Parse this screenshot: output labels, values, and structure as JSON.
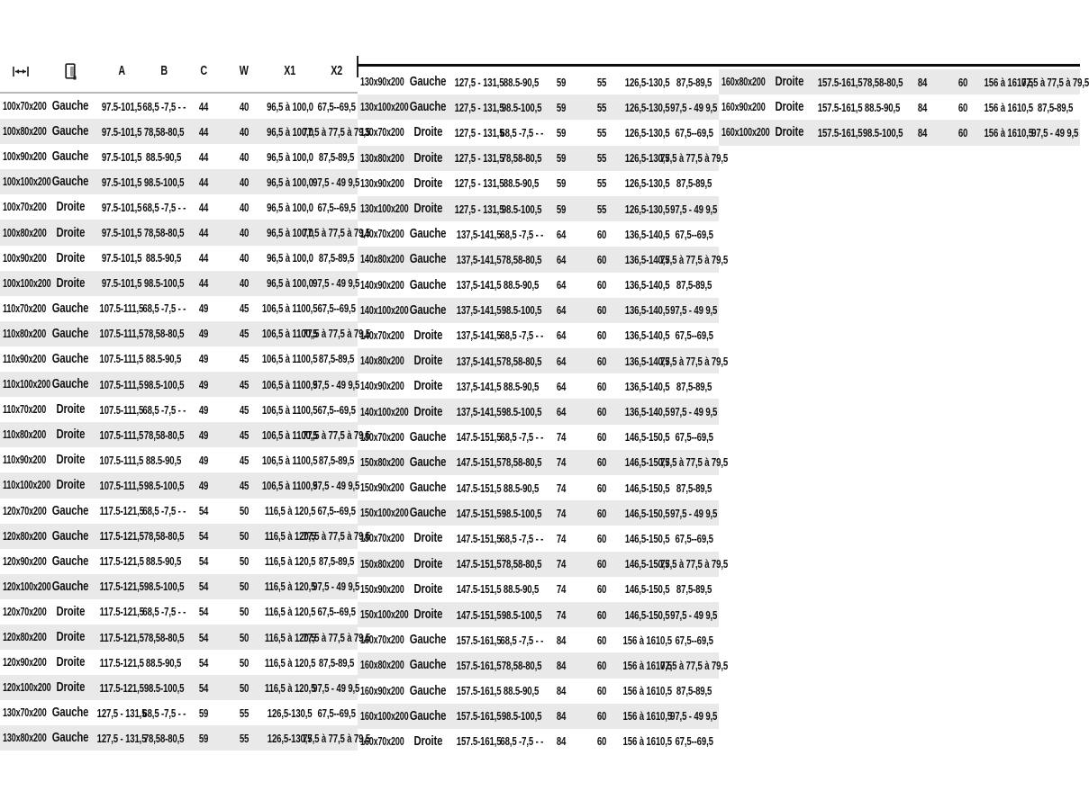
{
  "header": {
    "columns": [
      "A",
      "B",
      "C",
      "W",
      "X1",
      "X2"
    ],
    "icons": {
      "dimension": "width-arrow-icon",
      "side": "door-icon"
    }
  },
  "side_labels": {
    "left": "Gauche",
    "right": "Droite"
  },
  "tables": [
    {
      "rows": [
        [
          "100x70x200",
          "Gauche",
          "97.5-101,5",
          "68,5 -7,5 - -",
          "44",
          "40",
          "96,5 à 100,0",
          "67,5--69,5"
        ],
        [
          "100x80x200",
          "Gauche",
          "97.5-101,5",
          "78,58-80,5",
          "44",
          "40",
          "96,5 à 100,0",
          "77,5 à 77,5 à 79,5"
        ],
        [
          "100x90x200",
          "Gauche",
          "97.5-101,5",
          "88.5-90,5",
          "44",
          "40",
          "96,5 à 100,0",
          "87,5-89,5"
        ],
        [
          "100x100x200",
          "Gauche",
          "97.5-101,5",
          "98.5-100,5",
          "44",
          "40",
          "96,5 à 100,0",
          "97,5 - 49 9,5"
        ],
        [
          "100x70x200",
          "Droite",
          "97.5-101,5",
          "68,5 -7,5 - -",
          "44",
          "40",
          "96,5 à 100,0",
          "67,5--69,5"
        ],
        [
          "100x80x200",
          "Droite",
          "97.5-101,5",
          "78,58-80,5",
          "44",
          "40",
          "96,5 à 100,0",
          "77,5 à 77,5 à 79,5"
        ],
        [
          "100x90x200",
          "Droite",
          "97.5-101,5",
          "88.5-90,5",
          "44",
          "40",
          "96,5 à 100,0",
          "87,5-89,5"
        ],
        [
          "100x100x200",
          "Droite",
          "97.5-101,5",
          "98.5-100,5",
          "44",
          "40",
          "96,5 à 100,0",
          "97,5 - 49 9,5"
        ],
        [
          "110x70x200",
          "Gauche",
          "107.5-111,5",
          "68,5 -7,5 - -",
          "49",
          "45",
          "106,5 à 1100,5",
          "67,5--69,5"
        ],
        [
          "110x80x200",
          "Gauche",
          "107.5-111,5",
          "78,58-80,5",
          "49",
          "45",
          "106,5 à 1100,5",
          "77,5 à 77,5 à 79,5"
        ],
        [
          "110x90x200",
          "Gauche",
          "107.5-111,5",
          "88.5-90,5",
          "49",
          "45",
          "106,5 à 1100,5",
          "87,5-89,5"
        ],
        [
          "110x100x200",
          "Gauche",
          "107.5-111,5",
          "98.5-100,5",
          "49",
          "45",
          "106,5 à 1100,5",
          "97,5 - 49 9,5"
        ],
        [
          "110x70x200",
          "Droite",
          "107.5-111,5",
          "68,5 -7,5 - -",
          "49",
          "45",
          "106,5 à 1100,5",
          "67,5--69,5"
        ],
        [
          "110x80x200",
          "Droite",
          "107.5-111,5",
          "78,58-80,5",
          "49",
          "45",
          "106,5 à 1100,5",
          "77,5 à 77,5 à 79,5"
        ],
        [
          "110x90x200",
          "Droite",
          "107.5-111,5",
          "88.5-90,5",
          "49",
          "45",
          "106,5 à 1100,5",
          "87,5-89,5"
        ],
        [
          "110x100x200",
          "Droite",
          "107.5-111,5",
          "98.5-100,5",
          "49",
          "45",
          "106,5 à 1100,5",
          "97,5 - 49 9,5"
        ],
        [
          "120x70x200",
          "Gauche",
          "117.5-121,5",
          "68,5 -7,5 - -",
          "54",
          "50",
          "116,5 à 120,5",
          "67,5--69,5"
        ],
        [
          "120x80x200",
          "Gauche",
          "117.5-121,5",
          "78,58-80,5",
          "54",
          "50",
          "116,5 à 120,5",
          "77,5 à 77,5 à 79,5"
        ],
        [
          "120x90x200",
          "Gauche",
          "117.5-121,5",
          "88.5-90,5",
          "54",
          "50",
          "116,5 à 120,5",
          "87,5-89,5"
        ],
        [
          "120x100x200",
          "Gauche",
          "117.5-121,5",
          "98.5-100,5",
          "54",
          "50",
          "116,5 à 120,5",
          "97,5 - 49 9,5"
        ],
        [
          "120x70x200",
          "Droite",
          "117.5-121,5",
          "68,5 -7,5 - -",
          "54",
          "50",
          "116,5 à 120,5",
          "67,5--69,5"
        ],
        [
          "120x80x200",
          "Droite",
          "117.5-121,5",
          "78,58-80,5",
          "54",
          "50",
          "116,5 à 120,5",
          "77,5 à 77,5 à 79,5"
        ],
        [
          "120x90x200",
          "Droite",
          "117.5-121,5",
          "88.5-90,5",
          "54",
          "50",
          "116,5 à 120,5",
          "87,5-89,5"
        ],
        [
          "120x100x200",
          "Droite",
          "117.5-121,5",
          "98.5-100,5",
          "54",
          "50",
          "116,5 à 120,5",
          "97,5 - 49 9,5"
        ],
        [
          "130x70x200",
          "Gauche",
          "127,5 - 131,5",
          "68,5 -7,5 - -",
          "59",
          "55",
          "126,5-130,5",
          "67,5--69,5"
        ],
        [
          "130x80x200",
          "Gauche",
          "127,5 - 131,5",
          "78,58-80,5",
          "59",
          "55",
          "126,5-130,5",
          "77,5 à 77,5 à 79,5"
        ]
      ]
    },
    {
      "rows": [
        [
          "130x90x200",
          "Gauche",
          "127,5 - 131,5",
          "88.5-90,5",
          "59",
          "55",
          "126,5-130,5",
          "87,5-89,5"
        ],
        [
          "130x100x200",
          "Gauche",
          "127,5 - 131,5",
          "98.5-100,5",
          "59",
          "55",
          "126,5-130,5",
          "97,5 - 49 9,5"
        ],
        [
          "130x70x200",
          "Droite",
          "127,5 - 131,5",
          "68,5 -7,5 - -",
          "59",
          "55",
          "126,5-130,5",
          "67,5--69,5"
        ],
        [
          "130x80x200",
          "Droite",
          "127,5 - 131,5",
          "78,58-80,5",
          "59",
          "55",
          "126,5-130,5",
          "77,5 à 77,5 à 79,5"
        ],
        [
          "130x90x200",
          "Droite",
          "127,5 - 131,5",
          "88.5-90,5",
          "59",
          "55",
          "126,5-130,5",
          "87,5-89,5"
        ],
        [
          "130x100x200",
          "Droite",
          "127,5 - 131,5",
          "98.5-100,5",
          "59",
          "55",
          "126,5-130,5",
          "97,5 - 49 9,5"
        ],
        [
          "140x70x200",
          "Gauche",
          "137,5-141,5",
          "68,5 -7,5 - -",
          "64",
          "60",
          "136,5-140,5",
          "67,5--69,5"
        ],
        [
          "140x80x200",
          "Gauche",
          "137,5-141,5",
          "78,58-80,5",
          "64",
          "60",
          "136,5-140,5",
          "77,5 à 77,5 à 79,5"
        ],
        [
          "140x90x200",
          "Gauche",
          "137,5-141,5",
          "88.5-90,5",
          "64",
          "60",
          "136,5-140,5",
          "87,5-89,5"
        ],
        [
          "140x100x200",
          "Gauche",
          "137,5-141,5",
          "98.5-100,5",
          "64",
          "60",
          "136,5-140,5",
          "97,5 - 49 9,5"
        ],
        [
          "140x70x200",
          "Droite",
          "137,5-141,5",
          "68,5 -7,5 - -",
          "64",
          "60",
          "136,5-140,5",
          "67,5--69,5"
        ],
        [
          "140x80x200",
          "Droite",
          "137,5-141,5",
          "78,58-80,5",
          "64",
          "60",
          "136,5-140,5",
          "77,5 à 77,5 à 79,5"
        ],
        [
          "140x90x200",
          "Droite",
          "137,5-141,5",
          "88.5-90,5",
          "64",
          "60",
          "136,5-140,5",
          "87,5-89,5"
        ],
        [
          "140x100x200",
          "Droite",
          "137,5-141,5",
          "98.5-100,5",
          "64",
          "60",
          "136,5-140,5",
          "97,5 - 49 9,5"
        ],
        [
          "150x70x200",
          "Gauche",
          "147.5-151,5",
          "68,5 -7,5 - -",
          "74",
          "60",
          "146,5-150,5",
          "67,5--69,5"
        ],
        [
          "150x80x200",
          "Gauche",
          "147.5-151,5",
          "78,58-80,5",
          "74",
          "60",
          "146,5-150,5",
          "77,5 à 77,5 à 79,5"
        ],
        [
          "150x90x200",
          "Gauche",
          "147.5-151,5",
          "88.5-90,5",
          "74",
          "60",
          "146,5-150,5",
          "87,5-89,5"
        ],
        [
          "150x100x200",
          "Gauche",
          "147.5-151,5",
          "98.5-100,5",
          "74",
          "60",
          "146,5-150,5",
          "97,5 - 49 9,5"
        ],
        [
          "150x70x200",
          "Droite",
          "147.5-151,5",
          "68,5 -7,5 - -",
          "74",
          "60",
          "146,5-150,5",
          "67,5--69,5"
        ],
        [
          "150x80x200",
          "Droite",
          "147.5-151,5",
          "78,58-80,5",
          "74",
          "60",
          "146,5-150,5",
          "77,5 à 77,5 à 79,5"
        ],
        [
          "150x90x200",
          "Droite",
          "147.5-151,5",
          "88.5-90,5",
          "74",
          "60",
          "146,5-150,5",
          "87,5-89,5"
        ],
        [
          "150x100x200",
          "Droite",
          "147.5-151,5",
          "98.5-100,5",
          "74",
          "60",
          "146,5-150,5",
          "97,5 - 49 9,5"
        ],
        [
          "160x70x200",
          "Gauche",
          "157.5-161,5",
          "68,5 -7,5 - -",
          "84",
          "60",
          "156 à 1610,5",
          "67,5--69,5"
        ],
        [
          "160x80x200",
          "Gauche",
          "157.5-161,5",
          "78,58-80,5",
          "84",
          "60",
          "156 à 1610,5",
          "77,5 à 77,5 à 79,5"
        ],
        [
          "160x90x200",
          "Gauche",
          "157.5-161,5",
          "88.5-90,5",
          "84",
          "60",
          "156 à 1610,5",
          "87,5-89,5"
        ],
        [
          "160x100x200",
          "Gauche",
          "157.5-161,5",
          "98.5-100,5",
          "84",
          "60",
          "156 à 1610,5",
          "97,5 - 49 9,5"
        ],
        [
          "160x70x200",
          "Droite",
          "157.5-161,5",
          "68,5 -7,5 - -",
          "84",
          "60",
          "156 à 1610,5",
          "67,5--69,5"
        ]
      ]
    },
    {
      "rows": [
        [
          "160x80x200",
          "Droite",
          "157.5-161,5",
          "78,58-80,5",
          "84",
          "60",
          "156 à 1610,5",
          "77,5 à 77,5 à 79,5"
        ],
        [
          "160x90x200",
          "Droite",
          "157.5-161,5",
          "88.5-90,5",
          "84",
          "60",
          "156 à 1610,5",
          "87,5-89,5"
        ],
        [
          "160x100x200",
          "Droite",
          "157.5-161,5",
          "98.5-100,5",
          "84",
          "60",
          "156 à 1610,5",
          "97,5 - 49 9,5"
        ]
      ]
    }
  ],
  "colors": {
    "stripe": "#e9e9e9",
    "rule_dark": "#0c0c0c",
    "rule_light": "#b9b9b9",
    "text": "#111111"
  }
}
